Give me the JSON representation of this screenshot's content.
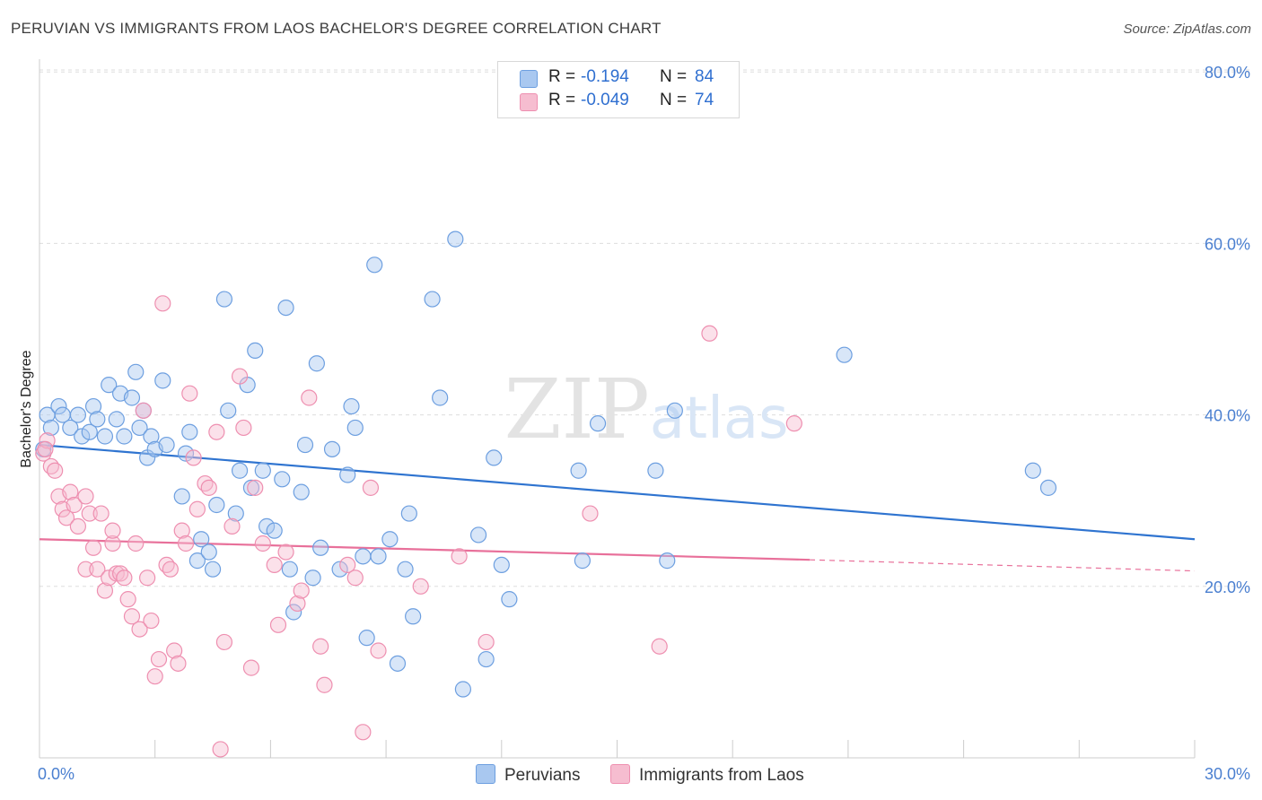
{
  "title": "PERUVIAN VS IMMIGRANTS FROM LAOS BACHELOR'S DEGREE CORRELATION CHART",
  "source": "Source: ZipAtlas.com",
  "watermark": "ZIPatlas",
  "colors": {
    "blue_fill": "#a9c8f0",
    "blue_stroke": "#6d9fe0",
    "blue_line": "#2f74d0",
    "pink_fill": "#f6bdd0",
    "pink_stroke": "#ee8fb0",
    "pink_line": "#e8709a",
    "tick_text": "#4a7fd0",
    "grid": "#dddddd"
  },
  "legend": {
    "rows": [
      {
        "r_label": "R =",
        "r_value": "-0.194",
        "n_label": "N =",
        "n_value": "84"
      },
      {
        "r_label": "R =",
        "r_value": "-0.049",
        "n_label": "N =",
        "n_value": "74"
      }
    ]
  },
  "bottom_legend": [
    "Peruvians",
    "Immigrants from Laos"
  ],
  "chart_data": {
    "type": "scatter",
    "ylabel": "Bachelor's Degree",
    "xlabel": "",
    "xlim": [
      0,
      30
    ],
    "ylim": [
      0,
      82
    ],
    "x_tick_labels": {
      "start": "0.0%",
      "end": "30.0%"
    },
    "y_ticks": [
      20,
      40,
      60,
      80
    ],
    "y_tick_labels": [
      "20.0%",
      "40.0%",
      "60.0%",
      "80.0%"
    ],
    "grid": "horizontal dashed",
    "legend_placement": "top-center",
    "series": [
      {
        "name": "Peruvians",
        "color": "blue",
        "trend": {
          "x": [
            0,
            30
          ],
          "y": [
            36.5,
            25.5
          ]
        },
        "points": [
          [
            0.2,
            40
          ],
          [
            0.5,
            41
          ],
          [
            0.6,
            40
          ],
          [
            0.8,
            38.5
          ],
          [
            1.0,
            40
          ],
          [
            1.1,
            37.5
          ],
          [
            1.3,
            38
          ],
          [
            1.4,
            41
          ],
          [
            1.5,
            39.5
          ],
          [
            1.7,
            37.5
          ],
          [
            1.8,
            43.5
          ],
          [
            2.0,
            39.5
          ],
          [
            2.1,
            42.5
          ],
          [
            2.2,
            37.5
          ],
          [
            2.4,
            42
          ],
          [
            2.5,
            45
          ],
          [
            2.6,
            38.5
          ],
          [
            2.8,
            35
          ],
          [
            2.9,
            37.5
          ],
          [
            3.0,
            36
          ],
          [
            3.2,
            44
          ],
          [
            3.3,
            36.5
          ],
          [
            3.7,
            30.5
          ],
          [
            3.8,
            35.5
          ],
          [
            3.9,
            38
          ],
          [
            4.1,
            23
          ],
          [
            4.2,
            25.5
          ],
          [
            4.4,
            24
          ],
          [
            4.5,
            22
          ],
          [
            4.6,
            29.5
          ],
          [
            4.8,
            53.5
          ],
          [
            4.9,
            40.5
          ],
          [
            5.1,
            28.5
          ],
          [
            5.2,
            33.5
          ],
          [
            5.4,
            43.5
          ],
          [
            5.5,
            31.5
          ],
          [
            5.6,
            47.5
          ],
          [
            5.8,
            33.5
          ],
          [
            5.9,
            27
          ],
          [
            6.1,
            26.5
          ],
          [
            6.3,
            32.5
          ],
          [
            6.4,
            52.5
          ],
          [
            6.5,
            22
          ],
          [
            6.6,
            17
          ],
          [
            6.8,
            31
          ],
          [
            6.9,
            36.5
          ],
          [
            7.1,
            21
          ],
          [
            7.2,
            46
          ],
          [
            7.3,
            24.5
          ],
          [
            7.6,
            36
          ],
          [
            7.8,
            22
          ],
          [
            8.0,
            33
          ],
          [
            8.1,
            41
          ],
          [
            8.2,
            38.5
          ],
          [
            8.4,
            23.5
          ],
          [
            8.5,
            14
          ],
          [
            8.7,
            57.5
          ],
          [
            8.8,
            23.5
          ],
          [
            9.1,
            25.5
          ],
          [
            9.3,
            11
          ],
          [
            9.5,
            22
          ],
          [
            9.6,
            28.5
          ],
          [
            9.7,
            16.5
          ],
          [
            10.2,
            53.5
          ],
          [
            10.4,
            42
          ],
          [
            10.8,
            60.5
          ],
          [
            11.0,
            8
          ],
          [
            11.4,
            26
          ],
          [
            11.6,
            11.5
          ],
          [
            11.8,
            35
          ],
          [
            12.0,
            22.5
          ],
          [
            12.2,
            18.5
          ],
          [
            14.0,
            33.5
          ],
          [
            14.1,
            23
          ],
          [
            14.5,
            39
          ],
          [
            16.0,
            33.5
          ],
          [
            16.3,
            23
          ],
          [
            16.5,
            40.5
          ],
          [
            20.9,
            47
          ],
          [
            25.8,
            33.5
          ],
          [
            26.2,
            31.5
          ],
          [
            0.1,
            36
          ],
          [
            0.3,
            38.5
          ],
          [
            2.7,
            40.5
          ]
        ]
      },
      {
        "name": "Immigrants from Laos",
        "color": "pink",
        "trend": {
          "x": [
            0,
            20
          ],
          "y": [
            25.5,
            23.1
          ]
        },
        "trend_dashed": {
          "x": [
            20,
            30
          ],
          "y": [
            23.1,
            21.8
          ]
        },
        "points": [
          [
            0.1,
            35.5
          ],
          [
            0.2,
            37
          ],
          [
            0.3,
            34
          ],
          [
            0.4,
            33.5
          ],
          [
            0.5,
            30.5
          ],
          [
            0.6,
            29
          ],
          [
            0.7,
            28
          ],
          [
            0.8,
            31
          ],
          [
            0.9,
            29.5
          ],
          [
            1.0,
            27
          ],
          [
            1.2,
            30.5
          ],
          [
            1.2,
            22
          ],
          [
            1.3,
            28.5
          ],
          [
            1.4,
            24.5
          ],
          [
            1.5,
            22
          ],
          [
            1.6,
            28.5
          ],
          [
            1.7,
            19.5
          ],
          [
            1.8,
            21
          ],
          [
            1.9,
            25
          ],
          [
            2.0,
            21.5
          ],
          [
            2.1,
            21.5
          ],
          [
            2.2,
            21
          ],
          [
            2.3,
            18.5
          ],
          [
            2.4,
            16.5
          ],
          [
            2.5,
            25
          ],
          [
            2.6,
            15
          ],
          [
            2.7,
            40.5
          ],
          [
            2.8,
            21
          ],
          [
            2.9,
            16
          ],
          [
            3.0,
            9.5
          ],
          [
            3.1,
            11.5
          ],
          [
            3.2,
            53
          ],
          [
            3.3,
            22.5
          ],
          [
            3.4,
            22
          ],
          [
            3.5,
            12.5
          ],
          [
            3.6,
            11
          ],
          [
            3.7,
            26.5
          ],
          [
            3.8,
            25
          ],
          [
            3.9,
            42.5
          ],
          [
            4.0,
            35
          ],
          [
            4.1,
            29
          ],
          [
            4.3,
            32
          ],
          [
            4.4,
            31.5
          ],
          [
            4.6,
            38
          ],
          [
            4.7,
            1
          ],
          [
            4.8,
            13.5
          ],
          [
            5.0,
            27
          ],
          [
            5.2,
            44.5
          ],
          [
            5.3,
            38.5
          ],
          [
            5.5,
            10.5
          ],
          [
            5.6,
            31.5
          ],
          [
            5.8,
            25
          ],
          [
            6.1,
            22.5
          ],
          [
            6.2,
            15.5
          ],
          [
            6.4,
            24
          ],
          [
            6.7,
            18
          ],
          [
            6.8,
            19.5
          ],
          [
            7.0,
            42
          ],
          [
            7.3,
            13
          ],
          [
            7.4,
            8.5
          ],
          [
            8.0,
            22.5
          ],
          [
            8.2,
            21
          ],
          [
            8.4,
            3
          ],
          [
            8.6,
            31.5
          ],
          [
            8.8,
            12.5
          ],
          [
            9.9,
            20
          ],
          [
            10.9,
            23.5
          ],
          [
            11.6,
            13.5
          ],
          [
            14.3,
            28.5
          ],
          [
            16.1,
            13
          ],
          [
            17.4,
            49.5
          ],
          [
            19.6,
            39
          ],
          [
            0.15,
            36
          ],
          [
            1.9,
            26.5
          ]
        ]
      }
    ]
  }
}
